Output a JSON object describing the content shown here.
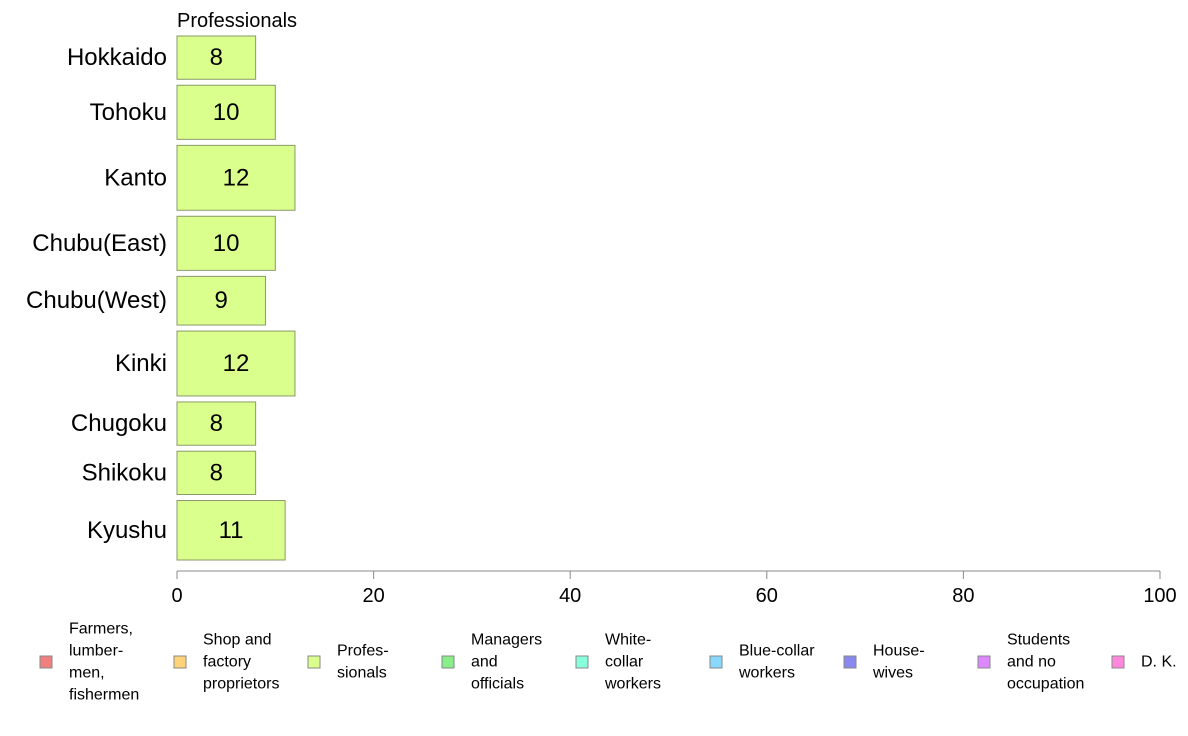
{
  "chart_data": {
    "type": "bar",
    "orientation": "horizontal",
    "title": "Professionals",
    "categories": [
      "Hokkaido",
      "Tohoku",
      "Kanto",
      "Chubu(East)",
      "Chubu(West)",
      "Kinki",
      "Chugoku",
      "Shikoku",
      "Kyushu"
    ],
    "values": [
      8,
      10,
      12,
      10,
      9,
      12,
      8,
      8,
      11
    ],
    "bar_labels": [
      "8",
      "10",
      "12",
      "10",
      "9",
      "12",
      "8",
      "8",
      "11"
    ],
    "xlim": [
      0,
      100
    ],
    "xticks": [
      0,
      20,
      40,
      60,
      80,
      100
    ],
    "xtick_labels": [
      "0",
      "20",
      "40",
      "60",
      "80",
      "100"
    ],
    "bar_color": "#dbff8c",
    "bar_border_color": "#8a9a6a",
    "legend_position": "bottom",
    "legend": [
      {
        "lines": [
          "Farmers,",
          "lumber-",
          "men,",
          "fishermen"
        ],
        "color": "#f08080"
      },
      {
        "lines": [
          "Shop and",
          "factory",
          "proprietors"
        ],
        "color": "#ffd37a"
      },
      {
        "lines": [
          "Profes-",
          "sionals"
        ],
        "color": "#dbff8c"
      },
      {
        "lines": [
          "Managers",
          "and",
          "officials"
        ],
        "color": "#88ee88"
      },
      {
        "lines": [
          "White-",
          "collar",
          "workers"
        ],
        "color": "#88ffdd"
      },
      {
        "lines": [
          "Blue-collar",
          "workers"
        ],
        "color": "#88d8ff"
      },
      {
        "lines": [
          "House-",
          "wives"
        ],
        "color": "#8888ee"
      },
      {
        "lines": [
          "Students",
          "and no",
          "occupation"
        ],
        "color": "#dd88ff"
      },
      {
        "lines": [
          "D. K."
        ],
        "color": "#ff88dd"
      }
    ]
  }
}
